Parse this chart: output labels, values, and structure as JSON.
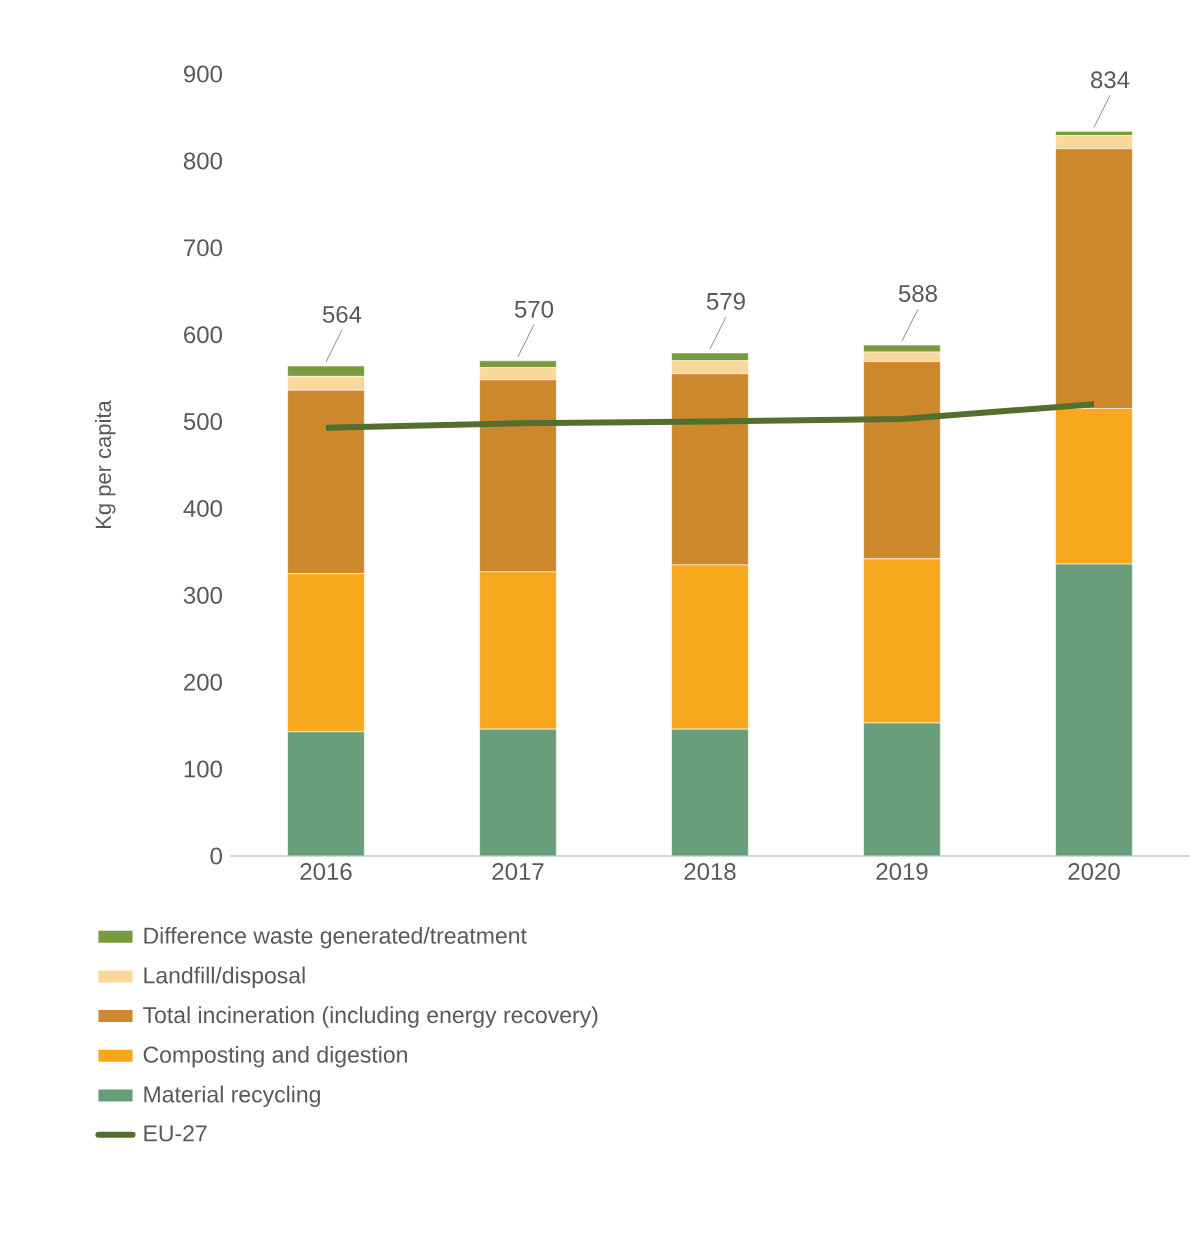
{
  "chart_data": {
    "type": "bar",
    "stacked": true,
    "ylabel": "Kg per capita",
    "categories": [
      "2016",
      "2017",
      "2018",
      "2019",
      "2020"
    ],
    "ylim": [
      0,
      900
    ],
    "yticks": [
      0,
      100,
      200,
      300,
      400,
      500,
      600,
      700,
      800,
      900
    ],
    "series": [
      {
        "name": "Material recycling",
        "color": "#689f7a",
        "values": [
          143,
          146,
          146,
          153,
          336
        ]
      },
      {
        "name": "Composting and digestion",
        "color": "#f8a81c",
        "values": [
          182,
          181,
          189,
          189,
          179
        ]
      },
      {
        "name": "Total incineration (including energy recovery)",
        "color": "#cd872c",
        "values": [
          211,
          221,
          220,
          227,
          299
        ]
      },
      {
        "name": "Landfill/disposal",
        "color": "#fad79b",
        "values": [
          16,
          14,
          15,
          11,
          15
        ]
      },
      {
        "name": "Difference waste generated/treatment",
        "color": "#7a9a3e",
        "values": [
          12,
          8,
          9,
          8,
          5
        ]
      },
      {
        "name": "EU-27",
        "type": "line",
        "color": "#536f2e",
        "values": [
          493,
          498,
          500,
          503,
          520
        ]
      }
    ],
    "totals": [
      "564",
      "570",
      "579",
      "588",
      "834"
    ],
    "legend": "bottom",
    "grid": false
  }
}
